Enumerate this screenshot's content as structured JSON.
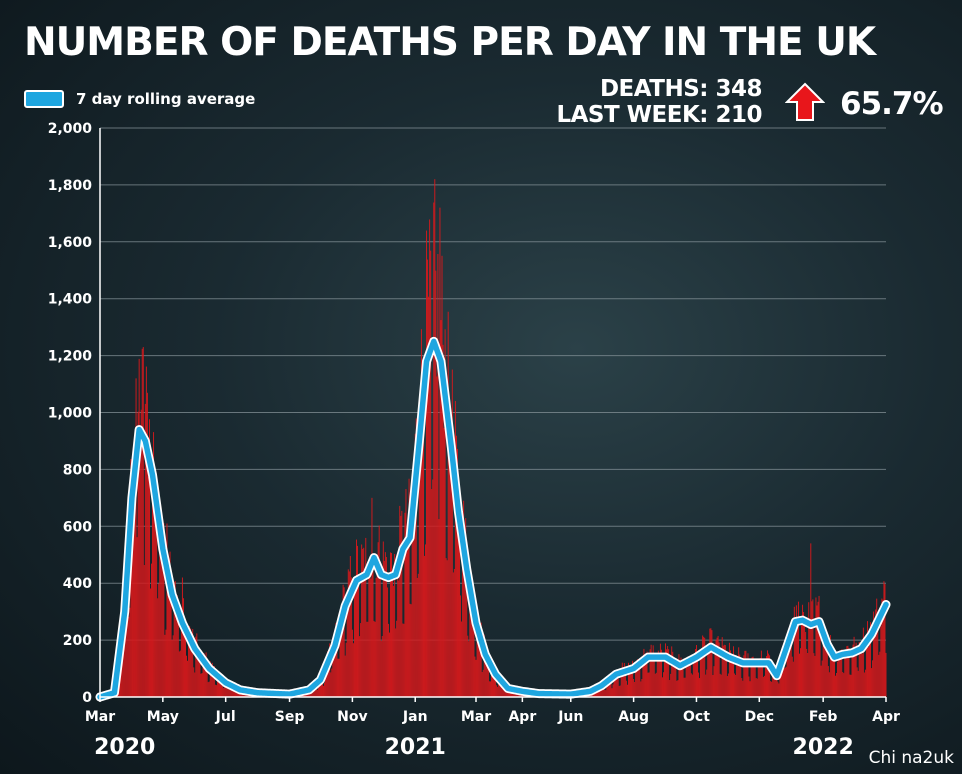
{
  "title": "NUMBER OF DEATHS PER DAY IN THE UK",
  "legend": {
    "label": "7 day rolling average"
  },
  "stats": {
    "deaths": "DEATHS: 348",
    "last_week": "LAST WEEK: 210",
    "change": "65.7%",
    "change_direction": "up"
  },
  "watermark": "Chi na2uk",
  "colors": {
    "bars": "#d7191c",
    "line": "#1ea6e0",
    "line_outline": "#ffffff",
    "arrow": "#e8161b",
    "grid": "#8a979c"
  },
  "chart_data": {
    "type": "bar",
    "title": "NUMBER OF DEATHS PER DAY IN THE UK",
    "xlabel": "",
    "ylabel": "",
    "ylim": [
      0,
      2000
    ],
    "yticks": [
      "0",
      "200",
      "400",
      "600",
      "800",
      "1,000",
      "1,200",
      "1,400",
      "1,600",
      "1,800",
      "2,000"
    ],
    "xticks": [
      "Mar",
      "May",
      "Jul",
      "Sep",
      "Nov",
      "Jan",
      "Mar",
      "Apr",
      "Jun",
      "Aug",
      "Oct",
      "Dec",
      "Feb",
      "Apr"
    ],
    "years": [
      "2020",
      "2021",
      "2022"
    ],
    "grid": true,
    "legend_position": "top-left",
    "series": [
      {
        "name": "7 day rolling average",
        "style": "line",
        "points": [
          [
            "2020-03-01",
            0
          ],
          [
            "2020-03-15",
            15
          ],
          [
            "2020-03-25",
            300
          ],
          [
            "2020-04-01",
            700
          ],
          [
            "2020-04-08",
            940
          ],
          [
            "2020-04-14",
            900
          ],
          [
            "2020-04-21",
            780
          ],
          [
            "2020-05-01",
            520
          ],
          [
            "2020-05-10",
            360
          ],
          [
            "2020-05-20",
            260
          ],
          [
            "2020-06-01",
            170
          ],
          [
            "2020-06-15",
            100
          ],
          [
            "2020-07-01",
            50
          ],
          [
            "2020-07-15",
            25
          ],
          [
            "2020-08-01",
            15
          ],
          [
            "2020-09-01",
            10
          ],
          [
            "2020-09-20",
            25
          ],
          [
            "2020-10-01",
            60
          ],
          [
            "2020-10-15",
            180
          ],
          [
            "2020-10-25",
            320
          ],
          [
            "2020-11-05",
            410
          ],
          [
            "2020-11-15",
            430
          ],
          [
            "2020-11-22",
            490
          ],
          [
            "2020-11-29",
            430
          ],
          [
            "2020-12-06",
            420
          ],
          [
            "2020-12-13",
            430
          ],
          [
            "2020-12-20",
            520
          ],
          [
            "2020-12-27",
            560
          ],
          [
            "2021-01-05",
            900
          ],
          [
            "2021-01-12",
            1180
          ],
          [
            "2021-01-19",
            1250
          ],
          [
            "2021-01-26",
            1180
          ],
          [
            "2021-02-05",
            880
          ],
          [
            "2021-02-12",
            650
          ],
          [
            "2021-02-20",
            450
          ],
          [
            "2021-03-01",
            260
          ],
          [
            "2021-03-10",
            150
          ],
          [
            "2021-03-20",
            80
          ],
          [
            "2021-04-01",
            30
          ],
          [
            "2021-04-15",
            20
          ],
          [
            "2021-05-01",
            12
          ],
          [
            "2021-06-01",
            10
          ],
          [
            "2021-06-20",
            20
          ],
          [
            "2021-07-01",
            40
          ],
          [
            "2021-07-15",
            80
          ],
          [
            "2021-08-01",
            100
          ],
          [
            "2021-08-15",
            140
          ],
          [
            "2021-09-01",
            140
          ],
          [
            "2021-09-15",
            110
          ],
          [
            "2021-10-01",
            140
          ],
          [
            "2021-10-15",
            175
          ],
          [
            "2021-11-01",
            140
          ],
          [
            "2021-11-15",
            120
          ],
          [
            "2021-12-01",
            120
          ],
          [
            "2021-12-10",
            120
          ],
          [
            "2021-12-18",
            75
          ],
          [
            "2021-12-28",
            180
          ],
          [
            "2022-01-05",
            265
          ],
          [
            "2022-01-12",
            270
          ],
          [
            "2022-01-20",
            255
          ],
          [
            "2022-01-28",
            265
          ],
          [
            "2022-02-05",
            185
          ],
          [
            "2022-02-12",
            140
          ],
          [
            "2022-02-20",
            150
          ],
          [
            "2022-03-01",
            155
          ],
          [
            "2022-03-10",
            170
          ],
          [
            "2022-03-20",
            220
          ],
          [
            "2022-03-28",
            280
          ],
          [
            "2022-04-03",
            325
          ]
        ]
      }
    ],
    "daily_peaks": [
      [
        "2020-04-05",
        1120
      ],
      [
        "2020-04-12",
        1230
      ],
      [
        "2020-05-05",
        610
      ],
      [
        "2020-05-20",
        420
      ],
      [
        "2020-11-20",
        700
      ],
      [
        "2021-01-20",
        1820
      ],
      [
        "2021-01-25",
        1720
      ],
      [
        "2022-01-20",
        540
      ]
    ]
  }
}
